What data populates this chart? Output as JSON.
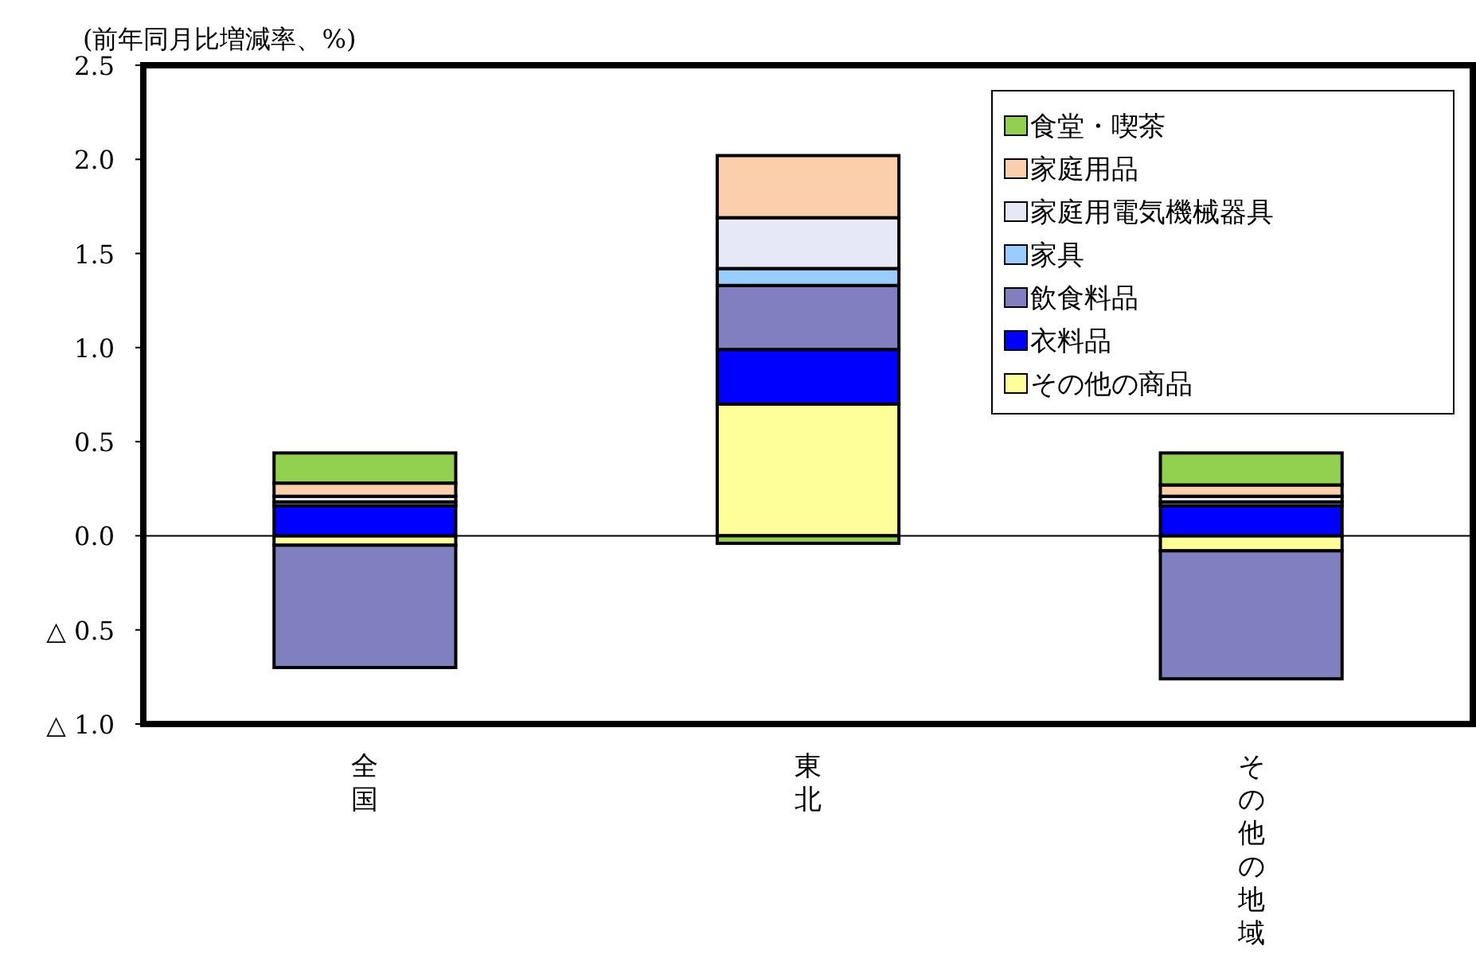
{
  "chart_data": {
    "type": "bar",
    "stacked": true,
    "ylabel": "(前年同月比増減率、%)",
    "categories": [
      "全国",
      "東北",
      "その他の地域"
    ],
    "series": [
      {
        "name": "その他の商品",
        "color": "#ffff99",
        "values": [
          -0.05,
          0.7,
          -0.08
        ]
      },
      {
        "name": "衣料品",
        "color": "#0000ff",
        "values": [
          0.16,
          0.29,
          0.16
        ]
      },
      {
        "name": "飲食料品",
        "color": "#8080c0",
        "values": [
          -0.65,
          0.34,
          -0.68
        ]
      },
      {
        "name": "家具",
        "color": "#99ccff",
        "values": [
          0.02,
          0.09,
          0.02
        ]
      },
      {
        "name": "家庭用電気機械器具",
        "color": "#e6e8f8",
        "values": [
          0.03,
          0.27,
          0.03
        ]
      },
      {
        "name": "家庭用品",
        "color": "#fbcfab",
        "values": [
          0.07,
          0.33,
          0.06
        ]
      },
      {
        "name": "食堂・喫茶",
        "color": "#92d050",
        "values": [
          0.16,
          -0.04,
          0.17
        ]
      }
    ],
    "ylim": [
      -1.0,
      2.5
    ],
    "yticks": [
      {
        "value": -1.0,
        "label": "△ 1.0"
      },
      {
        "value": -0.5,
        "label": "△ 0.5"
      },
      {
        "value": 0,
        "label": "0.0"
      },
      {
        "value": 0.5,
        "label": "0.5"
      },
      {
        "value": 1.0,
        "label": "1.0"
      },
      {
        "value": 1.5,
        "label": "1.5"
      },
      {
        "value": 2.0,
        "label": "2.0"
      },
      {
        "value": 2.5,
        "label": "2.5"
      }
    ],
    "ref_lines": [
      {
        "axis": "y",
        "value": 0
      }
    ],
    "grid": false,
    "legend": "top right"
  }
}
